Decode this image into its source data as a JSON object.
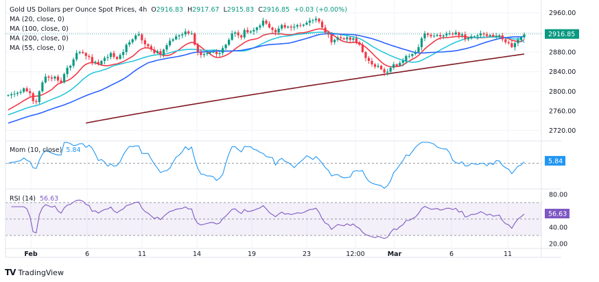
{
  "header": {
    "symbol": "Gold US Dollars per Ounce Spot Prices, 4h",
    "open_label": "O",
    "open": "2916.83",
    "high_label": "H",
    "high": "2917.67",
    "low_label": "L",
    "low": "2915.83",
    "close_label": "C",
    "close": "2916.85",
    "change": "+0.03 (+0.00%)"
  },
  "indicators": [
    {
      "label": "MA (20, close, 0)",
      "color": "#F23645"
    },
    {
      "label": "MA (100, close, 0)",
      "color": "#2962FF"
    },
    {
      "label": "MA (200, close, 0)",
      "color": "#801922"
    },
    {
      "label": "MA (55, close, 0)",
      "color": "#26C6DA"
    }
  ],
  "momentum": {
    "label": "Mom (10, close)",
    "value": "5.84",
    "color": "#2196F3"
  },
  "rsi": {
    "label": "RSI (14)",
    "value": "56.63",
    "color": "#7E57C2"
  },
  "price_axis": {
    "ticks": [
      "2960.00",
      "2880.00",
      "2840.00",
      "2800.00",
      "2760.00",
      "2720.00"
    ],
    "last_price": "2916.85"
  },
  "rsi_axis": {
    "ticks": [
      "80.00",
      "40.00",
      "20.00"
    ]
  },
  "time_axis": {
    "labels": [
      "Feb",
      "6",
      "11",
      "14",
      "19",
      "23",
      "12:00",
      "Mar",
      "6",
      "11"
    ]
  },
  "brand": {
    "name": "TradingView"
  },
  "colors": {
    "up": "#089981",
    "down": "#F23645",
    "grid": "#F0F3FA"
  },
  "chart_data": {
    "type": "candlestick",
    "title": "Gold US Dollars per Ounce Spot Prices, 4h",
    "xlabel": "",
    "ylabel": "",
    "ylim": [
      2700,
      2975
    ],
    "x_ticks": [
      "Feb",
      "6",
      "11",
      "14",
      "19",
      "23",
      "12:00",
      "Mar",
      "6",
      "11"
    ],
    "y_ticks": [
      2720,
      2760,
      2800,
      2840,
      2880,
      2920,
      2960
    ],
    "closes": [
      2792,
      2794,
      2795,
      2797,
      2799,
      2806,
      2800,
      2796,
      2780,
      2778,
      2800,
      2818,
      2830,
      2828,
      2826,
      2830,
      2822,
      2818,
      2835,
      2848,
      2852,
      2865,
      2878,
      2880,
      2878,
      2872,
      2870,
      2858,
      2860,
      2855,
      2862,
      2868,
      2870,
      2878,
      2870,
      2866,
      2874,
      2880,
      2895,
      2900,
      2906,
      2914,
      2916,
      2904,
      2896,
      2892,
      2885,
      2878,
      2882,
      2875,
      2885,
      2894,
      2903,
      2906,
      2912,
      2914,
      2916,
      2922,
      2918,
      2918,
      2895,
      2880,
      2874,
      2876,
      2878,
      2880,
      2880,
      2876,
      2878,
      2888,
      2895,
      2905,
      2918,
      2920,
      2914,
      2910,
      2925,
      2920,
      2922,
      2925,
      2930,
      2934,
      2944,
      2938,
      2930,
      2925,
      2920,
      2928,
      2935,
      2930,
      2932,
      2930,
      2932,
      2935,
      2934,
      2936,
      2940,
      2944,
      2945,
      2948,
      2942,
      2930,
      2920,
      2916,
      2900,
      2905,
      2910,
      2908,
      2906,
      2910,
      2905,
      2908,
      2900,
      2895,
      2880,
      2868,
      2862,
      2855,
      2850,
      2852,
      2845,
      2838,
      2840,
      2848,
      2855,
      2852,
      2858,
      2862,
      2872,
      2872,
      2876,
      2880,
      2890,
      2908,
      2918,
      2915,
      2912,
      2913,
      2915,
      2912,
      2914,
      2918,
      2918,
      2916,
      2920,
      2914,
      2916,
      2906,
      2908,
      2912,
      2912,
      2914,
      2918,
      2916,
      2913,
      2915,
      2912,
      2913,
      2914,
      2906,
      2900,
      2898,
      2890,
      2898,
      2905,
      2910,
      2916
    ],
    "series": [
      {
        "name": "MA (20, close, 0)",
        "values_start": 2762,
        "values_end": 2905
      },
      {
        "name": "MA (55, close, 0)",
        "values_start": 2752,
        "values_end": 2899
      },
      {
        "name": "MA (100, close, 0)",
        "values_start": 2735,
        "values_end": 2912
      },
      {
        "name": "MA (200, close, 0)",
        "values_start": 2700,
        "values_end": 2876
      }
    ],
    "momentum": {
      "ylim": [
        -60,
        50
      ],
      "zero_line": 0,
      "last": 5.84
    },
    "rsi": {
      "ylim": [
        15,
        85
      ],
      "band": [
        30,
        70
      ],
      "mid": 50,
      "last": 56.63
    }
  }
}
